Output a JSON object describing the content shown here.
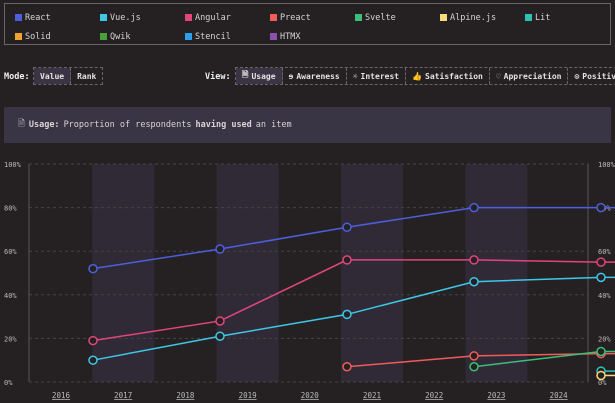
{
  "legend": [
    {
      "name": "React",
      "color": "#4d5fdc"
    },
    {
      "name": "Vue.js",
      "color": "#3fc7e6"
    },
    {
      "name": "Angular",
      "color": "#e2457c"
    },
    {
      "name": "Preact",
      "color": "#f05b5b"
    },
    {
      "name": "Svelte",
      "color": "#3cbf78"
    },
    {
      "name": "Alpine.js",
      "color": "#f5d97c"
    },
    {
      "name": "Lit",
      "color": "#2fc0b4"
    },
    {
      "name": "Solid",
      "color": "#f0a232"
    },
    {
      "name": "Qwik",
      "color": "#4a9e3c"
    },
    {
      "name": "Stencil",
      "color": "#2aa0ea"
    },
    {
      "name": "HTMX",
      "color": "#8d4fb2"
    }
  ],
  "mode": {
    "label": "Mode:",
    "options": [
      "Value",
      "Rank"
    ],
    "active": "Value"
  },
  "view": {
    "label": "View:",
    "options": [
      {
        "label": "Usage",
        "icon": "document-icon"
      },
      {
        "label": "Awareness",
        "icon": "ear-icon"
      },
      {
        "label": "Interest",
        "icon": "lightbulb-icon"
      },
      {
        "label": "Satisfaction",
        "icon": "thumbs-up-icon"
      },
      {
        "label": "Appreciation",
        "icon": "heart-icon"
      },
      {
        "label": "Positivity",
        "icon": "positivity-icon"
      }
    ],
    "active": "Usage"
  },
  "info": {
    "title": "Usage:",
    "text1": "Proportion of respondents",
    "bold": "having used",
    "text2": "an item"
  },
  "chart_data": {
    "type": "line",
    "x_labels": [
      "2016",
      "2017",
      "2018",
      "2019",
      "2020",
      "2021",
      "2022",
      "2023",
      "2024"
    ],
    "y_ticks": [
      "0%",
      "20%",
      "40%",
      "60%",
      "80%",
      "100%"
    ],
    "ylim": [
      0,
      100
    ],
    "series": [
      {
        "name": "React",
        "color": "#4d5fdc",
        "points": [
          [
            2016,
            52
          ],
          [
            2018,
            61
          ],
          [
            2020,
            71
          ],
          [
            2022,
            80
          ],
          [
            2024,
            80
          ]
        ]
      },
      {
        "name": "Angular",
        "color": "#e2457c",
        "points": [
          [
            2016,
            19
          ],
          [
            2018,
            28
          ],
          [
            2020,
            56
          ],
          [
            2022,
            56
          ],
          [
            2024,
            55
          ]
        ]
      },
      {
        "name": "Vue.js",
        "color": "#3fc7e6",
        "points": [
          [
            2016,
            10
          ],
          [
            2018,
            21
          ],
          [
            2020,
            31
          ],
          [
            2022,
            46
          ],
          [
            2024,
            48
          ]
        ]
      },
      {
        "name": "Preact",
        "color": "#f05b5b",
        "points": [
          [
            2020,
            7
          ],
          [
            2022,
            12
          ],
          [
            2024,
            13
          ]
        ]
      },
      {
        "name": "Svelte",
        "color": "#3cbf78",
        "points": [
          [
            2022,
            7
          ],
          [
            2024,
            14
          ]
        ]
      },
      {
        "name": "Lit",
        "color": "#2fc0b4",
        "points": [
          [
            2024,
            5
          ]
        ]
      },
      {
        "name": "Alpine.js",
        "color": "#f5d97c",
        "points": [
          [
            2024,
            3
          ]
        ]
      }
    ]
  }
}
